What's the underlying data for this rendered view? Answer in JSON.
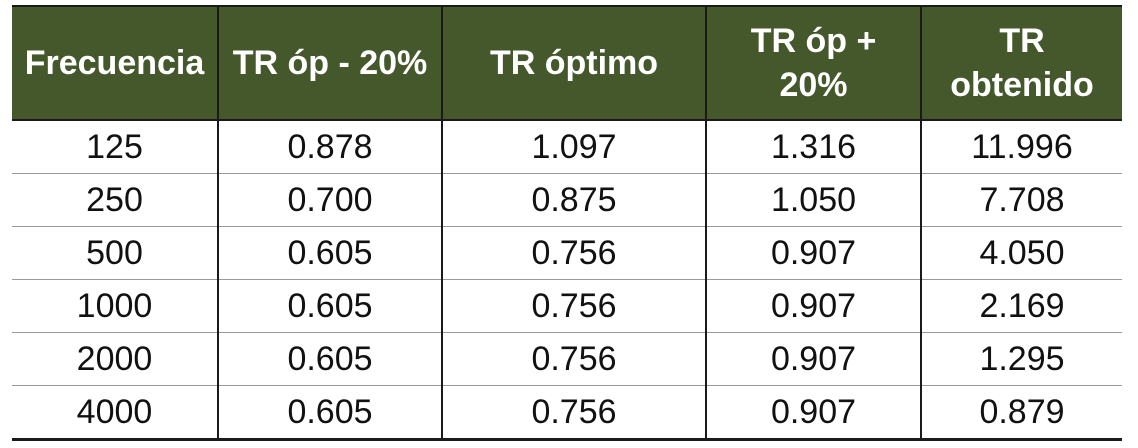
{
  "table": {
    "header_bg": "#44582b",
    "headers": [
      "Frecuencia",
      "TR óp - 20%",
      "TR óptimo",
      "TR óp + 20%",
      "TR obtenido"
    ],
    "rows": [
      [
        "125",
        "0.878",
        "1.097",
        "1.316",
        "11.996"
      ],
      [
        "250",
        "0.700",
        "0.875",
        "1.050",
        "7.708"
      ],
      [
        "500",
        "0.605",
        "0.756",
        "0.907",
        "4.050"
      ],
      [
        "1000",
        "0.605",
        "0.756",
        "0.907",
        "2.169"
      ],
      [
        "2000",
        "0.605",
        "0.756",
        "0.907",
        "1.295"
      ],
      [
        "4000",
        "0.605",
        "0.756",
        "0.907",
        "0.879"
      ]
    ]
  }
}
